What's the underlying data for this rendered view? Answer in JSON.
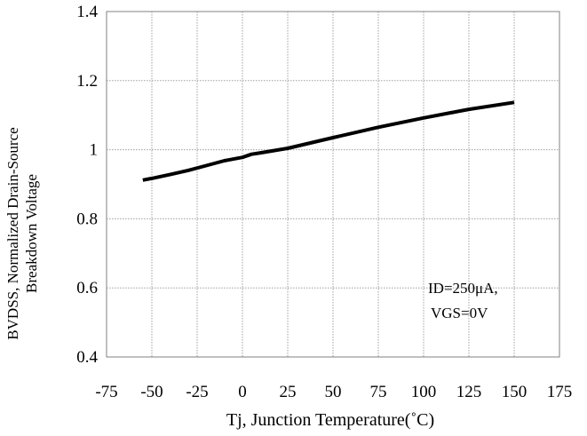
{
  "chart_data": {
    "type": "line",
    "xlabel": "Tj, Junction Temperature(˚C)",
    "ylabel_line1": "BVDSS, Normalized Drain-Source",
    "ylabel_line2": "Breakdown Voltage",
    "xlim": [
      -75,
      175
    ],
    "ylim": [
      0.4,
      1.4
    ],
    "x_ticks": [
      -75,
      -50,
      -25,
      0,
      25,
      50,
      75,
      100,
      125,
      150,
      175
    ],
    "y_ticks": [
      0.4,
      0.6,
      0.8,
      1,
      1.2,
      1.4
    ],
    "x_tick_labels": [
      "-75",
      "-50",
      "-25",
      "0",
      "25",
      "50",
      "75",
      "100",
      "125",
      "150",
      "175"
    ],
    "y_tick_labels": [
      "0.4",
      "0.6",
      "0.8",
      "1",
      "1.2",
      "1.4"
    ],
    "grid": true,
    "series": [
      {
        "x": [
          -55,
          -50,
          -40,
          -30,
          -20,
          -10,
          0,
          5,
          10,
          25,
          50,
          75,
          100,
          125,
          150
        ],
        "y": [
          0.912,
          0.917,
          0.928,
          0.94,
          0.954,
          0.968,
          0.978,
          0.987,
          0.991,
          1.004,
          1.035,
          1.065,
          1.092,
          1.117,
          1.137
        ]
      }
    ],
    "annotation_line1": "ID=250μA,",
    "annotation_line2": "VGS=0V",
    "colors": {
      "line": "#000000",
      "grid": "#a0a0a0",
      "frame": "#808080"
    }
  }
}
